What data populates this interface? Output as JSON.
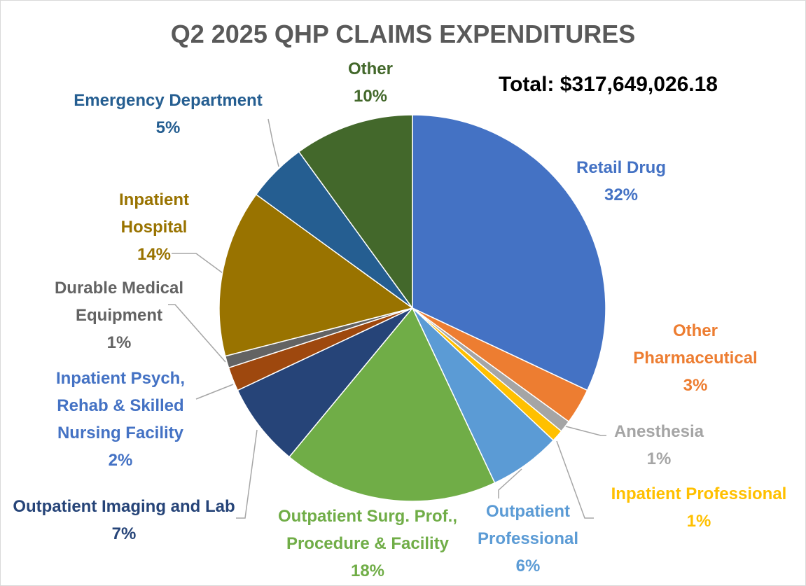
{
  "chart_data": {
    "type": "pie",
    "title": "Q2 2025 QHP CLAIMS EXPENDITURES",
    "annotation": "Total: $317,649,026.18",
    "categories": [
      "Retail Drug",
      "Other Pharmaceutical",
      "Anesthesia",
      "Inpatient Professional",
      "Outpatient Professional",
      "Outpatient Surg. Prof., Procedure & Facility",
      "Outpatient Imaging and Lab",
      "Inpatient Psych, Rehab & Skilled Nursing Facility",
      "Durable Medical Equipment",
      "Inpatient Hospital",
      "Emergency Department",
      "Other"
    ],
    "values": [
      32,
      3,
      1,
      1,
      6,
      18,
      7,
      2,
      1,
      14,
      5,
      10
    ],
    "value_labels": [
      "32%",
      "3%",
      "1%",
      "1%",
      "6%",
      "18%",
      "7%",
      "2%",
      "1%",
      "14%",
      "5%",
      "10%"
    ],
    "colors": [
      "#4472c4",
      "#ed7d31",
      "#a5a5a5",
      "#ffc000",
      "#5b9bd5",
      "#70ad47",
      "#264478",
      "#9e480e",
      "#636363",
      "#997300",
      "#255e91",
      "#43682b"
    ]
  }
}
